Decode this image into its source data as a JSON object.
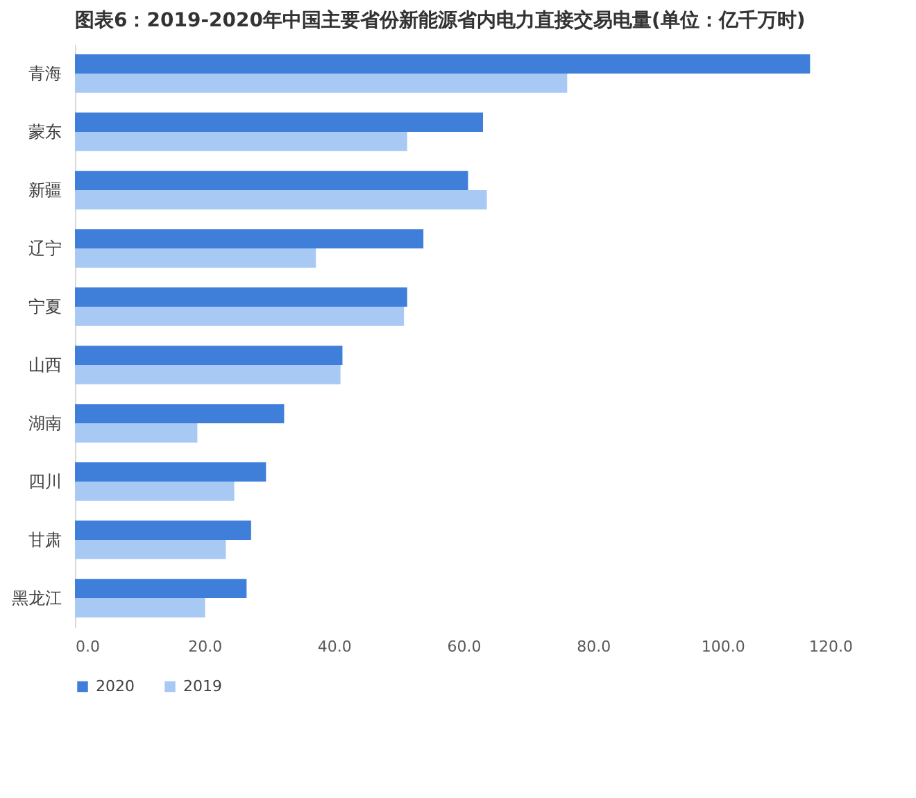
{
  "chart_data": {
    "type": "bar",
    "orientation": "horizontal",
    "title": "图表6：2019-2020年中国主要省份新能源省内电力直接交易电量(单位：亿千万时)",
    "categories": [
      "青海",
      "蒙东",
      "新疆",
      "辽宁",
      "宁夏",
      "山西",
      "湖南",
      "四川",
      "甘肃",
      "黑龙江"
    ],
    "series": [
      {
        "name": "2020",
        "color": "#3f7fd9",
        "values": [
          113.5,
          63.0,
          60.7,
          53.8,
          51.3,
          41.3,
          32.3,
          29.5,
          27.2,
          26.5
        ]
      },
      {
        "name": "2019",
        "color": "#a9c9f5",
        "values": [
          76.0,
          51.3,
          63.6,
          37.2,
          50.8,
          41.0,
          18.9,
          24.6,
          23.3,
          20.1
        ]
      }
    ],
    "xlim": [
      0,
      120
    ],
    "xticks": [
      {
        "value": 0,
        "label": "0.0"
      },
      {
        "value": 20,
        "label": "20.0"
      },
      {
        "value": 40,
        "label": "40.0"
      },
      {
        "value": 60,
        "label": "60.0"
      },
      {
        "value": 80,
        "label": "80.0"
      },
      {
        "value": 100,
        "label": "100.0"
      },
      {
        "value": 120,
        "label": "120.0"
      }
    ],
    "grid": false,
    "legend": "bottom"
  }
}
